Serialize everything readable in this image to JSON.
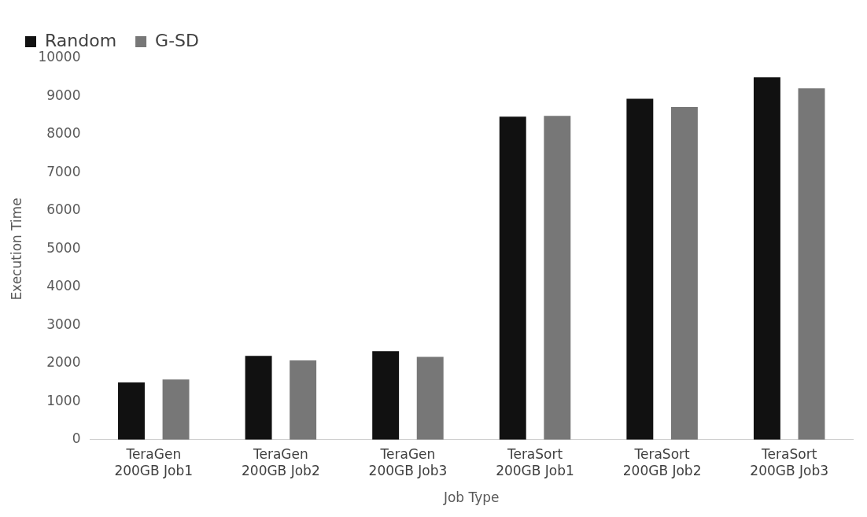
{
  "chart_data": {
    "type": "bar",
    "xlabel": "Job Type",
    "ylabel": "Execution Time",
    "categories": [
      "TeraGen 200GB Job1",
      "TeraGen 200GB Job2",
      "TeraGen 200GB Job3",
      "TeraSort 200GB Job1",
      "TeraSort 200GB Job2",
      "TeraSort 200GB Job3"
    ],
    "series": [
      {
        "name": "Random",
        "color": "#111111",
        "values": [
          1500,
          2200,
          2320,
          8470,
          8940,
          9500
        ]
      },
      {
        "name": "G-SD",
        "color": "#777777",
        "values": [
          1580,
          2080,
          2170,
          8490,
          8720,
          9210
        ]
      }
    ],
    "ylim": [
      0,
      10000
    ],
    "yticks": [
      0,
      1000,
      2000,
      3000,
      4000,
      5000,
      6000,
      7000,
      8000,
      9000,
      10000
    ],
    "grid": false,
    "legend": "top left"
  }
}
